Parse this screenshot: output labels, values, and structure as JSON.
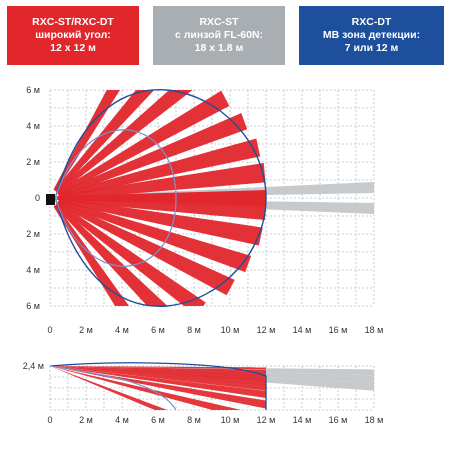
{
  "legend": [
    {
      "id": "rxc-st-dt",
      "lines": [
        "RXC-ST/RXC-DT",
        "широкий угол:",
        "12 x 12 м"
      ],
      "color": "#e2272c"
    },
    {
      "id": "rxc-st",
      "lines": [
        "RXC-ST",
        "с линзой FL-60N:",
        "18 x 1.8 м"
      ],
      "color": "#a9aeb3"
    },
    {
      "id": "rxc-dt",
      "lines": [
        "RXC-DT",
        "МВ зона детекции:",
        "7 или 12 м"
      ],
      "color": "#1d4f9c"
    }
  ],
  "top_view": {
    "y_ticks": [
      "6 м",
      "4 м",
      "2 м",
      "0",
      "2 м",
      "4 м",
      "6 м"
    ],
    "x_ticks": [
      "0",
      "2 м",
      "4 м",
      "6 м",
      "8 м",
      "10 м",
      "12 м",
      "14 м",
      "16 м",
      "18 м"
    ],
    "x_range_m": [
      0,
      18
    ],
    "y_range_m": [
      -6,
      6
    ],
    "wide_angle_range_m": 12,
    "long_range_m": 18,
    "mw_zones_m": [
      7,
      12
    ]
  },
  "side_view": {
    "y_label": "2,4 м",
    "x_ticks": [
      "0",
      "2 м",
      "4 м",
      "6 м",
      "8 м",
      "10 м",
      "12 м",
      "14 м",
      "16 м",
      "18 м"
    ],
    "mount_height_m": 2.4,
    "x_range_m": [
      0,
      18
    ]
  },
  "colors": {
    "red_zone": "#e2272c",
    "gray_zone": "#c7cacd",
    "mw_outline": "#1d4f9c",
    "mw_inner_outline": "#7d8fd0",
    "grid": "#b9bcc0",
    "sensor": "#111111"
  }
}
